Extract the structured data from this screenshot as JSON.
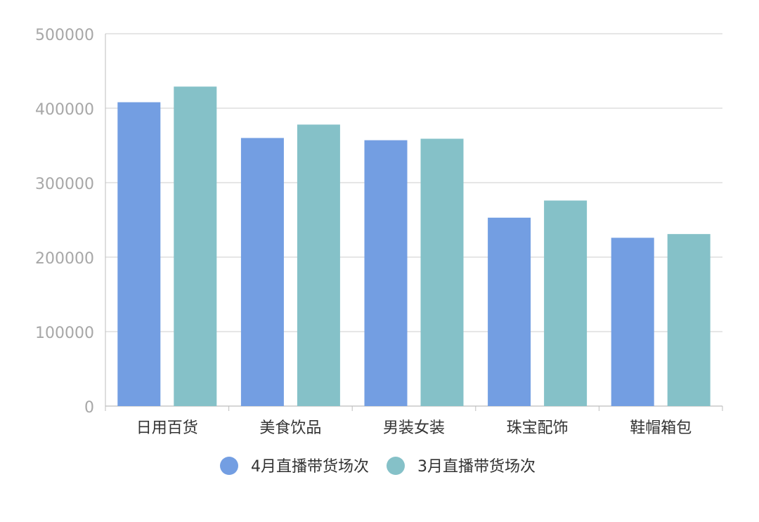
{
  "chart_data": {
    "type": "bar",
    "categories": [
      "日用百货",
      "美食饮品",
      "男装女装",
      "珠宝配饰",
      "鞋帽箱包"
    ],
    "series": [
      {
        "name": "4月直播带货场次",
        "color": "#739EE2",
        "values": [
          408000,
          360000,
          357000,
          253000,
          226000
        ]
      },
      {
        "name": "3月直播带货场次",
        "color": "#85C1C8",
        "values": [
          429000,
          378000,
          359000,
          276000,
          231000
        ]
      }
    ],
    "y_ticks": [
      "0",
      "100000",
      "200000",
      "300000",
      "400000",
      "500000"
    ],
    "ylim": [
      0,
      500000
    ],
    "grid": true,
    "legend_position": "bottom-center",
    "colors": {
      "axis_text": "#a7a7a7",
      "category_text": "#333333",
      "grid": "#d8d8d8",
      "axis_line": "#bdbdbd"
    }
  }
}
